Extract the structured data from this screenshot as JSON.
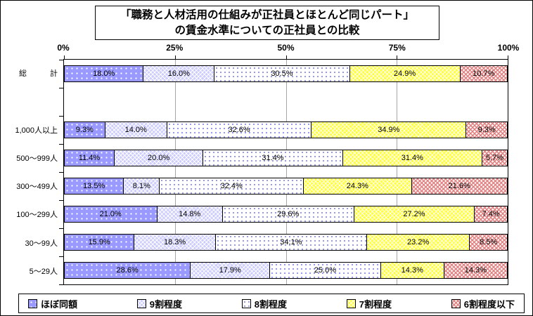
{
  "title": {
    "line1": "「職務と人材活用の仕組みが正社員とほとんど同じパート」",
    "line2": "の賃金水準についての正社員との比較"
  },
  "chart_data": {
    "type": "bar",
    "variant": "horizontal-stacked-100percent",
    "title": "「職務と人材活用の仕組みが正社員とほとんど同じパート」の賃金水準についての正社員との比較",
    "axis": {
      "position": "top",
      "min": 0,
      "max": 100,
      "tick_values": [
        0,
        25,
        50,
        75,
        100
      ],
      "tick_labels": [
        "0%",
        "25%",
        "50%",
        "75%",
        "100%"
      ],
      "gridlines_at": [
        25,
        50,
        75
      ],
      "gridline_color": "#a6a6a6"
    },
    "series": [
      "ほぼ同額",
      "9割程度",
      "8割程度",
      "7割程度",
      "6割程度以下"
    ],
    "series_colors": [
      "#9999ff",
      "#ccccff",
      "#ffffff",
      "#ffff40",
      "#e08080"
    ],
    "series_patterns": [
      "white-dots-on-periwinkle",
      "white-crosshatch-on-lavender",
      "blue-dots-on-white",
      "white-crosshatch-on-yellow",
      "pink-crosshatch-on-white"
    ],
    "value_suffix": "%",
    "rows": [
      {
        "label": "総　　　計",
        "values": [
          18.0,
          16.0,
          30.5,
          24.9,
          10.7
        ]
      },
      {
        "label": "",
        "values": []
      },
      {
        "label": "1,000人以上",
        "values": [
          9.3,
          14.0,
          32.6,
          34.9,
          9.3
        ]
      },
      {
        "label": "500～999人",
        "values": [
          11.4,
          20.0,
          31.4,
          31.4,
          5.7
        ]
      },
      {
        "label": "300～499人",
        "values": [
          13.5,
          8.1,
          32.4,
          24.3,
          21.6
        ]
      },
      {
        "label": "100～299人",
        "values": [
          21.0,
          14.8,
          29.6,
          27.2,
          7.4
        ]
      },
      {
        "label": "30～99人",
        "values": [
          15.9,
          18.3,
          34.1,
          23.2,
          8.5
        ]
      },
      {
        "label": "5～29人",
        "values": [
          28.6,
          17.9,
          25.0,
          14.3,
          14.3
        ]
      }
    ],
    "legend": {
      "position": "bottom",
      "items": [
        "ほぼ同額",
        "9割程度",
        "8割程度",
        "7割程度",
        "6割程度以下"
      ]
    }
  }
}
